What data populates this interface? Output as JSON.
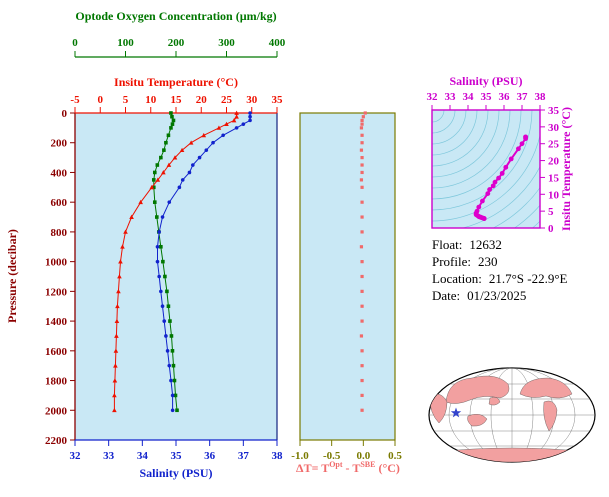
{
  "colors": {
    "plot_bg": "#c9e8f5",
    "frame": "#223388",
    "pressure_axis": "#8b0000",
    "contour": "#7fc8dc"
  },
  "chart_data": [
    {
      "id": "profile",
      "type": "line",
      "ylabel": "Pressure (decibar)",
      "ylim": [
        0,
        2200
      ],
      "yticks": [
        0,
        200,
        400,
        600,
        800,
        1000,
        1200,
        1400,
        1600,
        1800,
        2000,
        2200
      ],
      "pressure": [
        0,
        25,
        50,
        75,
        100,
        150,
        200,
        250,
        300,
        350,
        400,
        450,
        500,
        600,
        700,
        800,
        900,
        1000,
        1100,
        1200,
        1300,
        1400,
        1500,
        1600,
        1700,
        1800,
        1900,
        2000
      ],
      "axes": [
        {
          "id": "oxygen",
          "label": "Optode Oxygen Concentration (µm/kg)",
          "lim": [
            0,
            400
          ],
          "ticks": [
            0,
            100,
            200,
            300,
            400
          ],
          "color": "#007700",
          "marker": "square"
        },
        {
          "id": "temperature",
          "label": "Insitu Temperature (°C)",
          "lim": [
            -5,
            35
          ],
          "ticks": [
            -5,
            0,
            5,
            10,
            15,
            20,
            25,
            30,
            35
          ],
          "color": "#ee1100",
          "marker": "triangle"
        },
        {
          "id": "salinity",
          "label": "Salinity (PSU)",
          "lim": [
            32,
            38
          ],
          "ticks": [
            32,
            33,
            34,
            35,
            36,
            37,
            38
          ],
          "color": "#1122cc",
          "marker": "circle"
        }
      ],
      "series": [
        {
          "axis": "oxygen",
          "values": [
            190,
            192,
            195,
            193,
            190,
            185,
            180,
            176,
            170,
            163,
            158,
            156,
            156,
            158,
            162,
            166,
            170,
            174,
            178,
            182,
            185,
            188,
            191,
            193,
            195,
            197,
            199,
            202
          ]
        },
        {
          "axis": "temperature",
          "values": [
            27.0,
            27.0,
            26.5,
            25.0,
            23.5,
            20.5,
            18.0,
            16.2,
            14.8,
            13.6,
            12.5,
            11.4,
            10.2,
            8.0,
            6.2,
            5.0,
            4.4,
            4.0,
            3.8,
            3.6,
            3.4,
            3.3,
            3.2,
            3.1,
            3.0,
            2.9,
            2.8,
            2.8
          ]
        },
        {
          "axis": "salinity",
          "values": [
            37.2,
            37.2,
            37.2,
            37.0,
            36.8,
            36.4,
            36.1,
            35.9,
            35.7,
            35.5,
            35.4,
            35.2,
            35.1,
            34.8,
            34.6,
            34.5,
            34.45,
            34.45,
            34.5,
            34.55,
            34.6,
            34.65,
            34.7,
            34.75,
            34.8,
            34.85,
            34.9,
            34.9
          ]
        }
      ]
    },
    {
      "id": "delta_t",
      "type": "scatter",
      "xlim": [
        -1.0,
        0.5
      ],
      "xticks": [
        -1.0,
        -0.5,
        0.0,
        0.5
      ],
      "xtick_labels": [
        "-1.0",
        "-0.5",
        "0.0",
        "0.5"
      ],
      "axis_color": "#7a7a00",
      "color": "#f06a6a",
      "label_parts": {
        "prefix": "ΔT= T",
        "sup1": "Opt",
        "mid": " - T",
        "sup2": "SBE",
        "suffix": " (°C)"
      },
      "values": [
        0.03,
        0.0,
        -0.02,
        -0.02,
        -0.03,
        -0.02,
        -0.02,
        -0.03,
        -0.02,
        -0.02,
        -0.02,
        -0.03,
        -0.02,
        -0.02,
        -0.02,
        -0.02,
        -0.03,
        -0.02,
        -0.02,
        -0.02,
        -0.02,
        -0.02,
        -0.03,
        -0.02,
        -0.02,
        -0.02,
        -0.02,
        -0.02
      ]
    },
    {
      "id": "ts_diagram",
      "type": "line",
      "xlabel": "Salinity (PSU)",
      "ylabel": "Insitu Temperature (°C)",
      "xlim": [
        32,
        38
      ],
      "ylim": [
        0,
        35
      ],
      "xticks": [
        32,
        33,
        34,
        35,
        36,
        37,
        38
      ],
      "yticks": [
        0,
        5,
        10,
        15,
        20,
        25,
        30,
        35
      ],
      "axis_color": "#cc00cc",
      "color": "#dd00cc",
      "background": "density contour lines"
    }
  ],
  "info": {
    "rows": [
      {
        "label": "Float:",
        "value": "12632"
      },
      {
        "label": "Profile:",
        "value": "230"
      },
      {
        "label": "Location:",
        "value": "21.7°S -22.9°E"
      },
      {
        "label": "Date:",
        "value": "01/23/2025"
      }
    ]
  },
  "map": {
    "land_color": "#f2a0a0",
    "ocean_color": "#ffffff",
    "marker_color": "#3344cc",
    "marker": "star"
  }
}
